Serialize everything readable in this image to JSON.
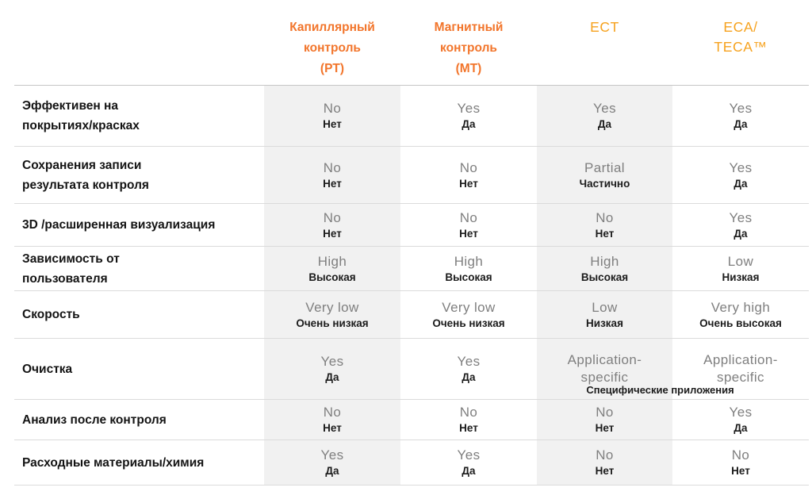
{
  "colors": {
    "header_primary_orange": "#F2752B",
    "header_secondary_orange": "#F6A21E",
    "value_en_gray": "#7F7F7F",
    "value_ru_dark": "#1C1C1C",
    "row_label_dark": "#141414",
    "column_band_gray": "#F1F1F1",
    "row_line_gray": "#DBDBDB",
    "header_line_gray": "#C6C6C6"
  },
  "table": {
    "columns": [
      {
        "id": "pt",
        "style": "primary",
        "band": true,
        "header_lines": [
          "Капиллярный",
          "контроль",
          "(PT)"
        ]
      },
      {
        "id": "mt",
        "style": "primary",
        "band": false,
        "header_lines": [
          "Магнитный",
          "контроль",
          "(MT)"
        ]
      },
      {
        "id": "ect",
        "style": "secondary",
        "band": true,
        "header_lines": [
          "ECT"
        ]
      },
      {
        "id": "eca",
        "style": "secondary",
        "band": false,
        "header_lines": [
          "ECA/",
          "TECA™"
        ]
      }
    ],
    "rows": [
      {
        "label_lines": [
          "Эффективен на",
          "покрытиях/красках"
        ],
        "cells": [
          {
            "en": "No",
            "ru": "Нет"
          },
          {
            "en": "Yes",
            "ru": "Да"
          },
          {
            "en": "Yes",
            "ru": "Да"
          },
          {
            "en": "Yes",
            "ru": "Да"
          }
        ]
      },
      {
        "label_lines": [
          "Сохранения записи",
          "результата контроля"
        ],
        "cells": [
          {
            "en": "No",
            "ru": "Нет"
          },
          {
            "en": "No",
            "ru": "Нет"
          },
          {
            "en": "Partial",
            "ru": "Частично"
          },
          {
            "en": "Yes",
            "ru": "Да"
          }
        ]
      },
      {
        "label_lines": [
          "3D /расширенная визуализация"
        ],
        "cells": [
          {
            "en": "No",
            "ru": "Нет"
          },
          {
            "en": "No",
            "ru": "Нет"
          },
          {
            "en": "No",
            "ru": "Нет"
          },
          {
            "en": "Yes",
            "ru": "Да"
          }
        ]
      },
      {
        "label_lines": [
          "Зависимость от",
          "пользователя"
        ],
        "cells": [
          {
            "en": "High",
            "ru": "Высокая"
          },
          {
            "en": "High",
            "ru": "Высокая"
          },
          {
            "en": "High",
            "ru": "Высокая"
          },
          {
            "en": "Low",
            "ru": "Низкая"
          }
        ]
      },
      {
        "label_lines": [
          "Скорость"
        ],
        "cells": [
          {
            "en": "Very low",
            "ru": "Очень низкая"
          },
          {
            "en": "Very low",
            "ru": "Очень низкая"
          },
          {
            "en": "Low",
            "ru": "Низкая"
          },
          {
            "en": "Very high",
            "ru": "Очень высокая"
          }
        ]
      },
      {
        "label_lines": [
          "Очистка"
        ],
        "cells": [
          {
            "en": "Yes",
            "ru": "Да"
          },
          {
            "en": "Yes",
            "ru": "Да"
          },
          {
            "en_lines": [
              "Application-",
              "specific"
            ]
          },
          {
            "en_lines": [
              "Application-",
              "specific"
            ]
          }
        ],
        "shared_ru": "Специфические приложения"
      },
      {
        "label_lines": [
          "Анализ после контроля"
        ],
        "cells": [
          {
            "en": "No",
            "ru": "Нет"
          },
          {
            "en": "No",
            "ru": "Нет"
          },
          {
            "en": "No",
            "ru": "Нет"
          },
          {
            "en": "Yes",
            "ru": "Да"
          }
        ]
      },
      {
        "label_lines": [
          "Расходные материалы/химия"
        ],
        "cells": [
          {
            "en": "Yes",
            "ru": "Да"
          },
          {
            "en": "Yes",
            "ru": "Да"
          },
          {
            "en": "No",
            "ru": "Нет"
          },
          {
            "en": "No",
            "ru": "Нет"
          }
        ]
      }
    ]
  }
}
